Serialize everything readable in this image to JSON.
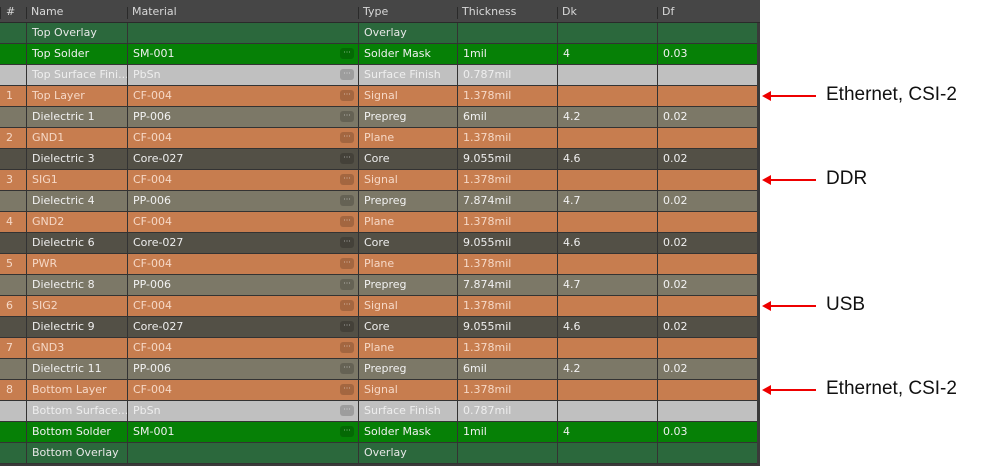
{
  "columns": [
    "#",
    "Name",
    "Material",
    "Type",
    "Thickness",
    "Dk",
    "Df"
  ],
  "colors": {
    "Overlay": "#2b683c",
    "Solder Mask": "#068006",
    "Surface Finish": "#c0c0c0",
    "Signal": "#c77d4f",
    "Plane": "#c77d4f",
    "Prepreg": "#7c7867",
    "Core": "#535046",
    "annotation": "#e00000"
  },
  "rows": [
    {
      "num": "",
      "name": "Top Overlay",
      "material": "",
      "type": "Overlay",
      "thickness": "",
      "dk": "",
      "df": ""
    },
    {
      "num": "",
      "name": "Top Solder",
      "material": "SM-001",
      "type": "Solder Mask",
      "thickness": "1mil",
      "dk": "4",
      "df": "0.03"
    },
    {
      "num": "",
      "name": "Top Surface Fini...",
      "material": "PbSn",
      "type": "Surface Finish",
      "thickness": "0.787mil",
      "dk": "",
      "df": ""
    },
    {
      "num": "1",
      "name": "Top Layer",
      "material": "CF-004",
      "type": "Signal",
      "thickness": "1.378mil",
      "dk": "",
      "df": ""
    },
    {
      "num": "",
      "name": "Dielectric 1",
      "material": "PP-006",
      "type": "Prepreg",
      "thickness": "6mil",
      "dk": "4.2",
      "df": "0.02"
    },
    {
      "num": "2",
      "name": "GND1",
      "material": "CF-004",
      "type": "Plane",
      "thickness": "1.378mil",
      "dk": "",
      "df": ""
    },
    {
      "num": "",
      "name": "Dielectric 3",
      "material": "Core-027",
      "type": "Core",
      "thickness": "9.055mil",
      "dk": "4.6",
      "df": "0.02"
    },
    {
      "num": "3",
      "name": "SIG1",
      "material": "CF-004",
      "type": "Signal",
      "thickness": "1.378mil",
      "dk": "",
      "df": ""
    },
    {
      "num": "",
      "name": "Dielectric 4",
      "material": "PP-006",
      "type": "Prepreg",
      "thickness": "7.874mil",
      "dk": "4.7",
      "df": "0.02"
    },
    {
      "num": "4",
      "name": "GND2",
      "material": "CF-004",
      "type": "Plane",
      "thickness": "1.378mil",
      "dk": "",
      "df": ""
    },
    {
      "num": "",
      "name": "Dielectric 6",
      "material": "Core-027",
      "type": "Core",
      "thickness": "9.055mil",
      "dk": "4.6",
      "df": "0.02"
    },
    {
      "num": "5",
      "name": "PWR",
      "material": "CF-004",
      "type": "Plane",
      "thickness": "1.378mil",
      "dk": "",
      "df": ""
    },
    {
      "num": "",
      "name": "Dielectric 8",
      "material": "PP-006",
      "type": "Prepreg",
      "thickness": "7.874mil",
      "dk": "4.7",
      "df": "0.02"
    },
    {
      "num": "6",
      "name": "SIG2",
      "material": "CF-004",
      "type": "Signal",
      "thickness": "1.378mil",
      "dk": "",
      "df": ""
    },
    {
      "num": "",
      "name": "Dielectric 9",
      "material": "Core-027",
      "type": "Core",
      "thickness": "9.055mil",
      "dk": "4.6",
      "df": "0.02"
    },
    {
      "num": "7",
      "name": "GND3",
      "material": "CF-004",
      "type": "Plane",
      "thickness": "1.378mil",
      "dk": "",
      "df": ""
    },
    {
      "num": "",
      "name": "Dielectric 11",
      "material": "PP-006",
      "type": "Prepreg",
      "thickness": "6mil",
      "dk": "4.2",
      "df": "0.02"
    },
    {
      "num": "8",
      "name": "Bottom Layer",
      "material": "CF-004",
      "type": "Signal",
      "thickness": "1.378mil",
      "dk": "",
      "df": ""
    },
    {
      "num": "",
      "name": "Bottom Surface...",
      "material": "PbSn",
      "type": "Surface Finish",
      "thickness": "0.787mil",
      "dk": "",
      "df": ""
    },
    {
      "num": "",
      "name": "Bottom Solder",
      "material": "SM-001",
      "type": "Solder Mask",
      "thickness": "1mil",
      "dk": "4",
      "df": "0.03"
    },
    {
      "num": "",
      "name": "Bottom Overlay",
      "material": "",
      "type": "Overlay",
      "thickness": "",
      "dk": "",
      "df": ""
    }
  ],
  "annotations": [
    {
      "row": 3,
      "label": "Ethernet, CSI-2"
    },
    {
      "row": 7,
      "label": "DDR"
    },
    {
      "row": 13,
      "label": "USB"
    },
    {
      "row": 17,
      "label": "Ethernet, CSI-2"
    }
  ]
}
